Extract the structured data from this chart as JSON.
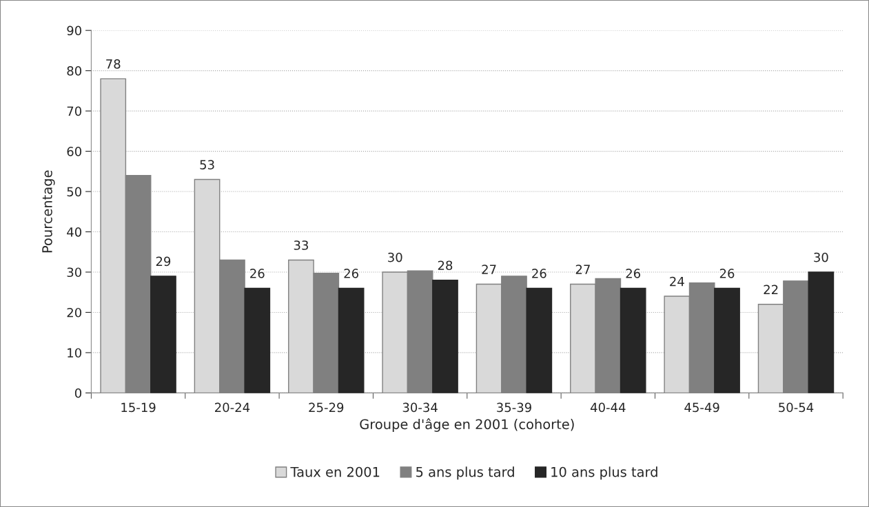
{
  "chart_data": {
    "type": "bar",
    "xlabel": "Groupe d'âge en 2001 (cohorte)",
    "ylabel": "Pourcentage",
    "categories": [
      "15-19",
      "20-24",
      "25-29",
      "30-34",
      "35-39",
      "40-44",
      "45-49",
      "50-54"
    ],
    "series": [
      {
        "name": "Taux en 2001",
        "color": "#d9d9d9",
        "values": [
          78,
          53,
          33,
          30,
          27,
          27,
          24,
          22
        ],
        "value_labels": [
          "78",
          "53",
          "33",
          "30",
          "27",
          "27",
          "24",
          "22"
        ]
      },
      {
        "name": "5 ans plus tard",
        "color": "#808080",
        "values": [
          54,
          33,
          29.7,
          30.3,
          29,
          28.4,
          27.3,
          27.8
        ]
      },
      {
        "name": "10 ans plus tard",
        "color": "#262626",
        "values": [
          29,
          26,
          26,
          28,
          26,
          26,
          26,
          30
        ],
        "value_labels": [
          "29",
          "26",
          "26",
          "28",
          "26",
          "26",
          "26",
          "30"
        ]
      }
    ],
    "ylim": [
      0,
      90
    ],
    "yticks": [
      0,
      10,
      20,
      30,
      40,
      50,
      60,
      70,
      80,
      90
    ],
    "grid": "y",
    "legend": "bottom"
  }
}
